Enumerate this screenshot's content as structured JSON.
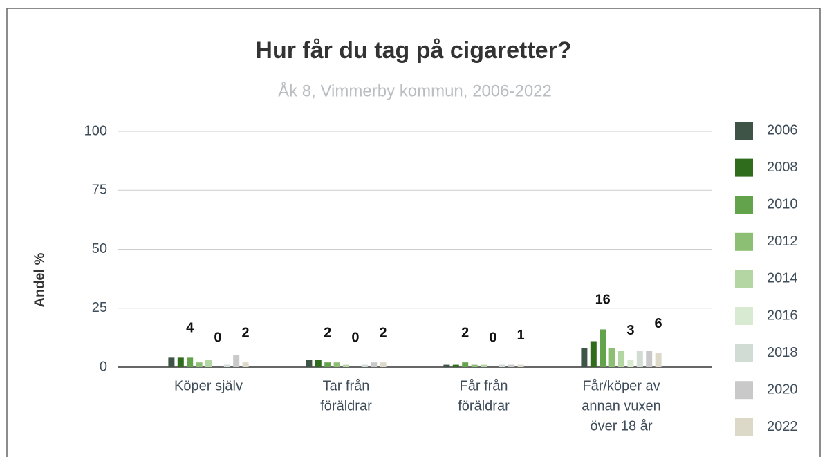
{
  "chart_data": {
    "type": "bar",
    "title": "Hur får du tag på cigaretter?",
    "subtitle": "Åk 8, Vimmerby kommun, 2006-2022",
    "y_label": "Andel %",
    "categories": [
      [
        "Köper själv"
      ],
      [
        "Tar från",
        "föräldrar"
      ],
      [
        "Får från",
        "föräldrar"
      ],
      [
        "Får/köper av",
        "annan vuxen",
        "över 18 år"
      ]
    ],
    "series": [
      {
        "name": "2006",
        "color": "#3d5446",
        "values": [
          4,
          3,
          1,
          8
        ]
      },
      {
        "name": "2008",
        "color": "#2f6c1c",
        "values": [
          4,
          3,
          1,
          11
        ]
      },
      {
        "name": "2010",
        "color": "#63a34b",
        "values": [
          4,
          2,
          2,
          16
        ],
        "show_labels": true
      },
      {
        "name": "2012",
        "color": "#8cbf73",
        "values": [
          2,
          2,
          1,
          8
        ]
      },
      {
        "name": "2014",
        "color": "#b4d6a2",
        "values": [
          3,
          1,
          1,
          7
        ]
      },
      {
        "name": "2016",
        "color": "#d8ebd2",
        "values": [
          0,
          0,
          0,
          3
        ],
        "show_labels": true
      },
      {
        "name": "2018",
        "color": "#d1dcd4",
        "values": [
          1,
          1,
          1,
          7
        ]
      },
      {
        "name": "2020",
        "color": "#c9c9c9",
        "values": [
          5,
          2,
          1,
          7
        ]
      },
      {
        "name": "2022",
        "color": "#ddd9c9",
        "values": [
          2,
          2,
          1,
          6
        ],
        "show_labels": true
      }
    ],
    "ylim": [
      0,
      100
    ],
    "yticks": [
      0,
      25,
      50,
      75,
      100
    ],
    "grid": true,
    "legend": "right"
  }
}
